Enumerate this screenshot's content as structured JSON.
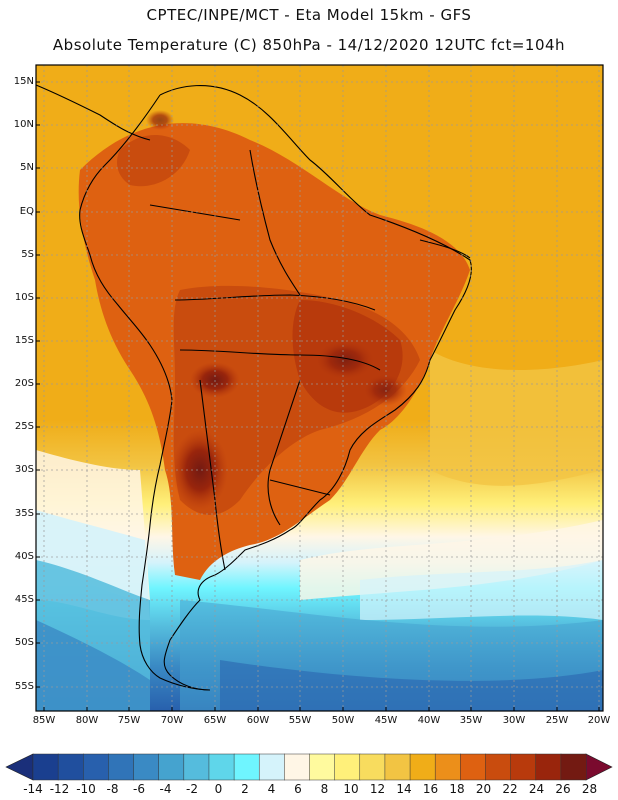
{
  "header": {
    "title_line1": "CPTEC/INPE/MCT -  Eta Model 15km - GFS",
    "title_line2": "Absolute Temperature (C) 850hPa - 14/12/2020 12UTC fct=104h"
  },
  "map": {
    "lat_labels": [
      "15N",
      "10N",
      "5N",
      "EQ",
      "5S",
      "10S",
      "15S",
      "20S",
      "25S",
      "30S",
      "35S",
      "40S",
      "45S",
      "50S",
      "55S"
    ],
    "lon_labels": [
      "85W",
      "80W",
      "75W",
      "70W",
      "65W",
      "60W",
      "55W",
      "50W",
      "45W",
      "40W",
      "35W",
      "30W",
      "25W",
      "20W"
    ],
    "gridline_color": "#9a9a9a",
    "coastline_color": "#000000"
  },
  "colorbar": {
    "labels": [
      "-14",
      "-12",
      "-10",
      "-8",
      "-6",
      "-4",
      "-2",
      "0",
      "2",
      "4",
      "6",
      "8",
      "10",
      "12",
      "14",
      "16",
      "18",
      "20",
      "22",
      "24",
      "26",
      "28"
    ],
    "colors": [
      "#1a3f8f",
      "#204f9e",
      "#2860ad",
      "#3074b8",
      "#3a8ac4",
      "#45a3cf",
      "#55bcdd",
      "#5fd6ea",
      "#6ff5ff",
      "#d5f3fb",
      "#fff6e6",
      "#fffa9e",
      "#fff07a",
      "#f8dc5e",
      "#f2c443",
      "#f0ad18",
      "#ec8f1a",
      "#de6111",
      "#c94c0e",
      "#b83a0c",
      "#99250c",
      "#731a12"
    ],
    "low_arrow_color": "#1a2f7a",
    "high_arrow_color": "#7a0a2e"
  }
}
